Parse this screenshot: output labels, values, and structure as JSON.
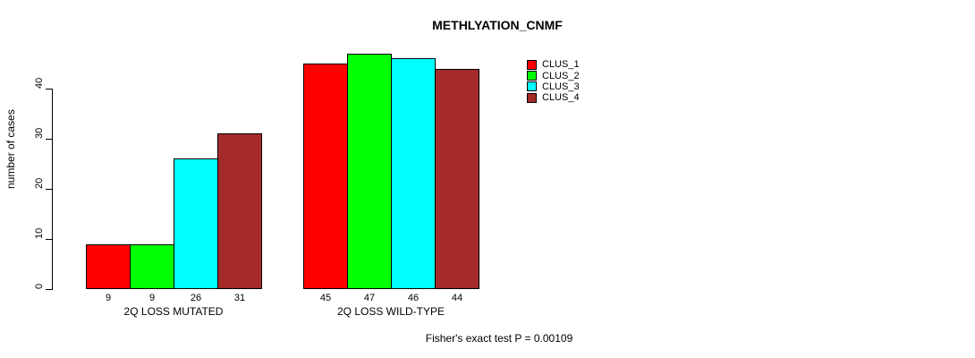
{
  "chart_data": {
    "type": "bar",
    "title": "METHLYATION_CNMF",
    "ylabel": "number of cases",
    "xlabel": "",
    "yticks": [
      0,
      10,
      20,
      30,
      40
    ],
    "ylim": [
      0,
      47
    ],
    "grid": false,
    "legend_position": "right",
    "groups": [
      {
        "label": "2Q LOSS MUTATED",
        "values": [
          9,
          9,
          26,
          31
        ]
      },
      {
        "label": "2Q LOSS WILD-TYPE",
        "values": [
          45,
          47,
          46,
          44
        ]
      }
    ],
    "series": [
      {
        "name": "CLUS_1",
        "color": "#FF0000",
        "values": [
          9,
          45
        ]
      },
      {
        "name": "CLUS_2",
        "color": "#00FF00",
        "values": [
          9,
          47
        ]
      },
      {
        "name": "CLUS_3",
        "color": "#00FFFF",
        "values": [
          26,
          46
        ]
      },
      {
        "name": "CLUS_4",
        "color": "#A52A2A",
        "values": [
          31,
          44
        ]
      }
    ],
    "bar_value_labels": [
      [
        9,
        9,
        26,
        31
      ],
      [
        45,
        47,
        46,
        44
      ]
    ],
    "annotation": "Fisher's exact test P = 0.00109"
  },
  "colors": {
    "foreground": "#000000",
    "background": "#FFFFFF",
    "clus_1": "#FF0000",
    "clus_2": "#00FF00",
    "clus_3": "#00FFFF",
    "clus_4": "#A52A2A"
  }
}
